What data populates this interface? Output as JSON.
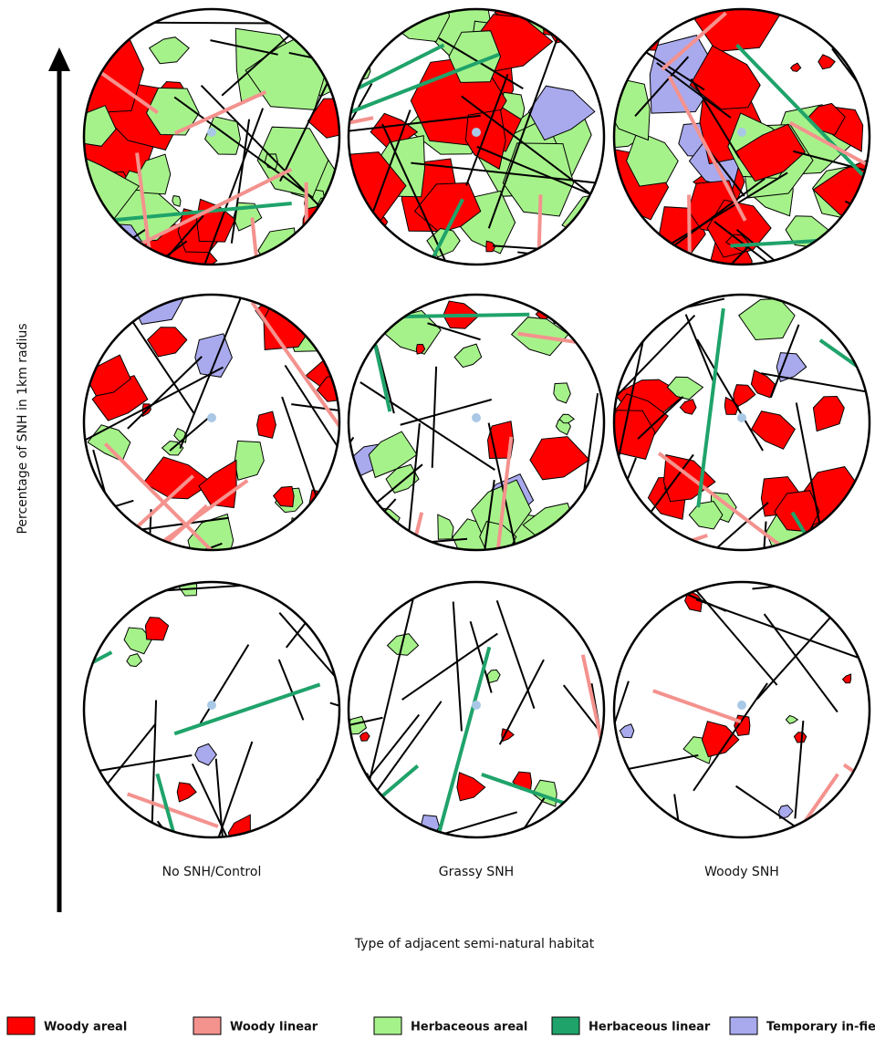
{
  "y_axis_label": "Percentage of SNH in 1km radius",
  "x_axis_label": "Type of adjacent semi-natural habitat",
  "columns": [
    "No SNH/Control",
    "Grassy SNH",
    "Woody SNH"
  ],
  "legend": [
    {
      "label": "Woody areal",
      "color": "#ff0000"
    },
    {
      "label": "Woody linear",
      "color": "#f4928e"
    },
    {
      "label": "Herbaceous areal",
      "color": "#a6f28a"
    },
    {
      "label": "Herbaceous linear",
      "color": "#1fa36a"
    },
    {
      "label": "Temporary in-field",
      "color": "#a9a9ee"
    }
  ]
}
